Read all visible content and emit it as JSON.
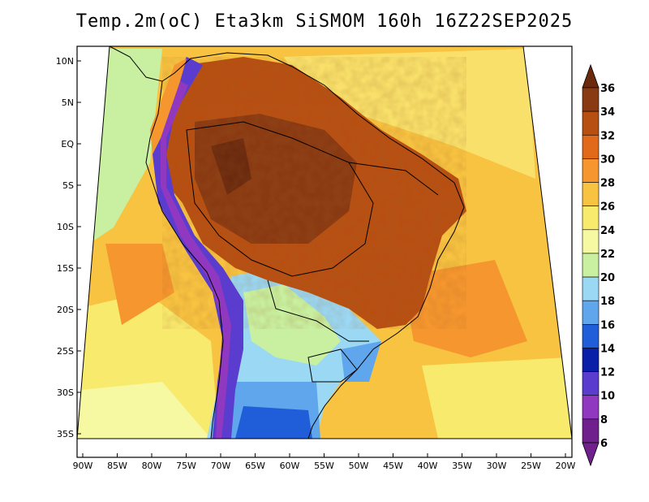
{
  "title": "Temp.2m(oC) Eta3km SiSMOM 160h 16Z22SEP2025",
  "map": {
    "lat_ticks": [
      "10N",
      "5N",
      "EQ",
      "5S",
      "10S",
      "15S",
      "20S",
      "25S",
      "30S",
      "35S"
    ],
    "lon_ticks": [
      "90W",
      "85W",
      "80W",
      "75W",
      "70W",
      "65W",
      "60W",
      "55W",
      "50W",
      "45W",
      "40W",
      "35W",
      "30W",
      "25W",
      "20W"
    ],
    "lat_range": [
      -38,
      11
    ],
    "lon_range": [
      -91,
      -19
    ]
  },
  "colorbar": {
    "labels": [
      "36",
      "34",
      "32",
      "30",
      "28",
      "26",
      "24",
      "22",
      "20",
      "18",
      "16",
      "14",
      "12",
      "10",
      "8",
      "6"
    ],
    "colors": [
      "#6b2a0e",
      "#8a3a12",
      "#b84f12",
      "#e06a1a",
      "#f5962e",
      "#f7c341",
      "#f8ea6c",
      "#f6f8a2",
      "#c8f0a0",
      "#9ad8f4",
      "#5fa6ec",
      "#1f5ed8",
      "#0a1fa8",
      "#5a3ccf",
      "#9038c0",
      "#70208c"
    ]
  }
}
